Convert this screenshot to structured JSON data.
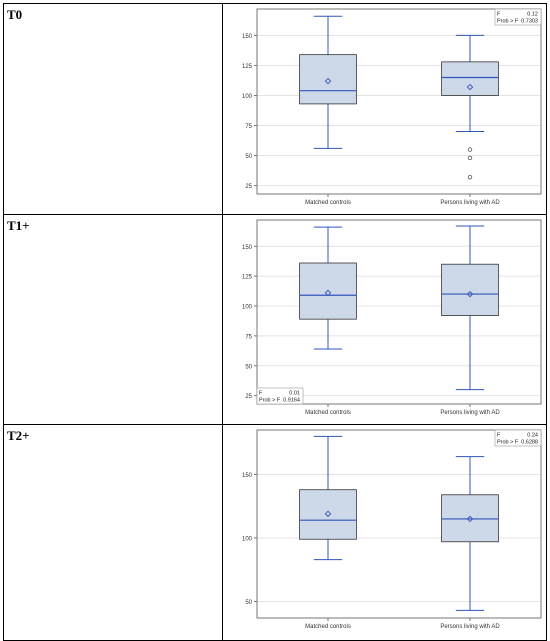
{
  "panels": [
    {
      "label": "T0",
      "chart_data": {
        "type": "box",
        "categories": [
          "Matched controls",
          "Persons living with AD"
        ],
        "yticks": [
          25,
          50,
          75,
          100,
          125,
          150
        ],
        "ylim": [
          18,
          172
        ],
        "boxes": [
          {
            "min": 56,
            "q1": 93,
            "median": 104,
            "q3": 134,
            "max": 166,
            "mean": 112,
            "outliers": []
          },
          {
            "min": 70,
            "q1": 100,
            "median": 115,
            "q3": 128,
            "max": 150,
            "mean": 107,
            "outliers": [
              55,
              48,
              32
            ]
          }
        ],
        "stats": {
          "position": "top-right",
          "f_label": "F",
          "f_value": "0.12",
          "p_label": "Prob > F",
          "p_value": "0.7303"
        }
      }
    },
    {
      "label": "T1+",
      "chart_data": {
        "type": "box",
        "categories": [
          "Matched controls",
          "Persons living with AD"
        ],
        "yticks": [
          25,
          50,
          75,
          100,
          125,
          150
        ],
        "ylim": [
          18,
          172
        ],
        "boxes": [
          {
            "min": 64,
            "q1": 89,
            "median": 109,
            "q3": 136,
            "max": 166,
            "mean": 111,
            "outliers": []
          },
          {
            "min": 30,
            "q1": 92,
            "median": 110,
            "q3": 135,
            "max": 167,
            "mean": 110,
            "outliers": []
          }
        ],
        "stats": {
          "position": "bottom-left",
          "f_label": "F",
          "f_value": "0.01",
          "p_label": "Prob > F",
          "p_value": "0.9164"
        }
      }
    },
    {
      "label": "T2+",
      "chart_data": {
        "type": "box",
        "categories": [
          "Matched controls",
          "Persons living with AD"
        ],
        "yticks": [
          50,
          100,
          150
        ],
        "ylim": [
          37,
          185
        ],
        "boxes": [
          {
            "min": 83,
            "q1": 99,
            "median": 114,
            "q3": 138,
            "max": 180,
            "mean": 119,
            "outliers": []
          },
          {
            "min": 43,
            "q1": 97,
            "median": 115,
            "q3": 134,
            "max": 164,
            "mean": 115,
            "outliers": []
          }
        ],
        "stats": {
          "position": "top-right",
          "f_label": "F",
          "f_value": "0.24",
          "p_label": "Prob > F",
          "p_value": "0.6288"
        }
      }
    }
  ]
}
